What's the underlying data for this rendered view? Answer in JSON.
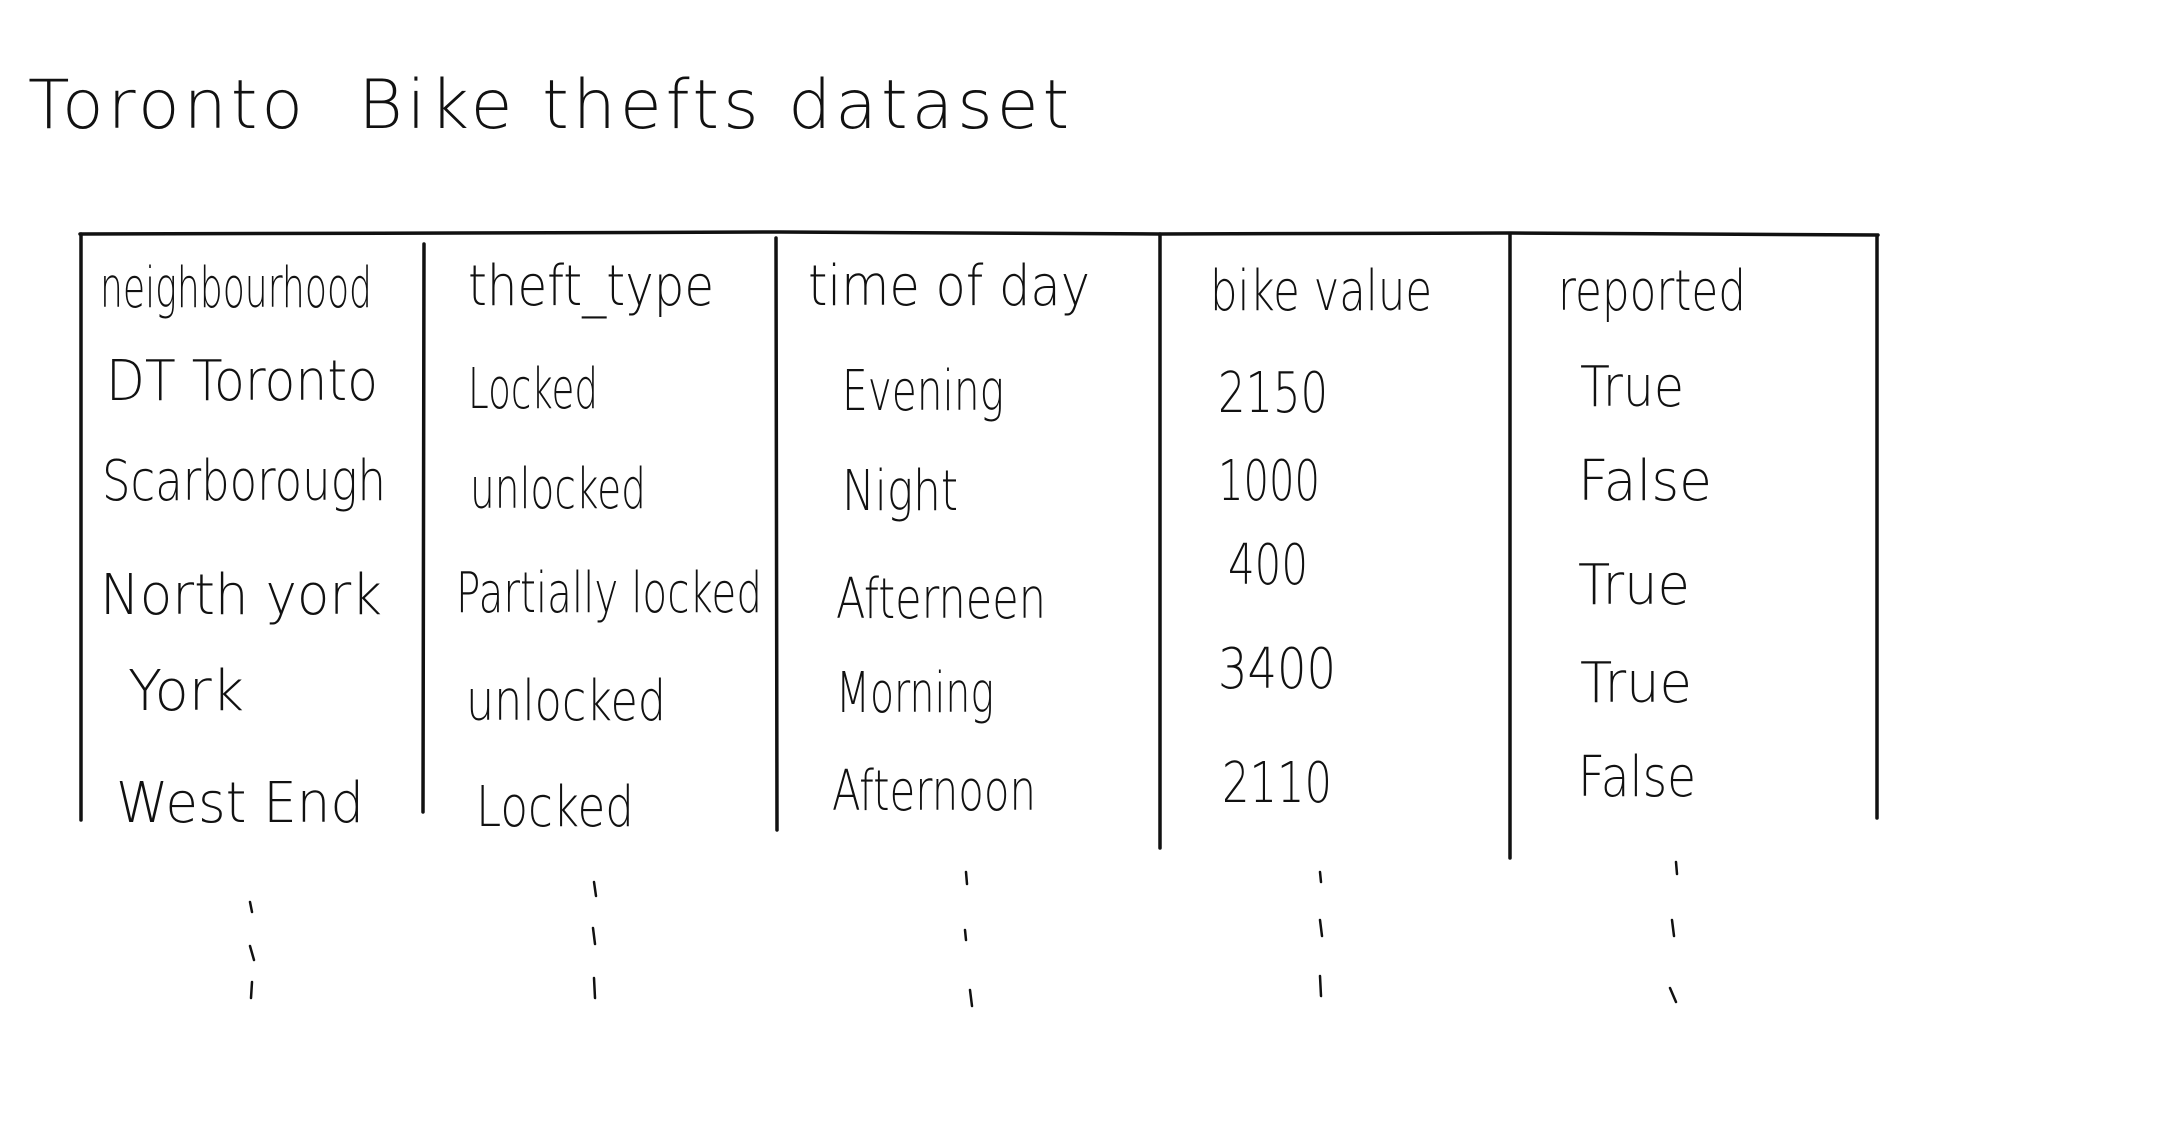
{
  "title": "Toronto  Bike thefts dataset",
  "table": {
    "columns": [
      "neighbourhood",
      "theft_type",
      "time of day",
      "bike value",
      "reported"
    ],
    "rows": [
      [
        "DT Toronto",
        "Locked",
        "Evening",
        "2150",
        "True"
      ],
      [
        "Scarborough",
        "unlocked",
        "Night",
        "1000",
        "False"
      ],
      [
        "North york",
        "Partially locked",
        "Afterneen",
        "400",
        "True"
      ],
      [
        "York",
        "unlocked",
        "Morning",
        "3400",
        "True"
      ],
      [
        "West End",
        "Locked",
        "Afternoon",
        "2110",
        "False"
      ]
    ],
    "continuation": "⋮"
  }
}
